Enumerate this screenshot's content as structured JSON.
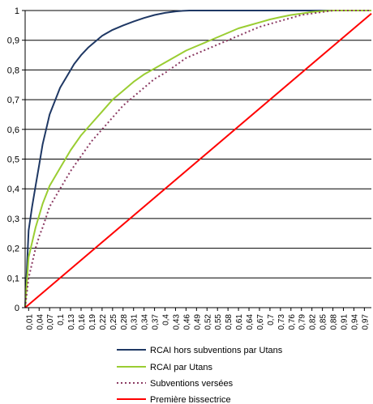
{
  "chart_data": {
    "type": "line",
    "title": "",
    "xlabel": "",
    "ylabel": "",
    "ylim": [
      0,
      1
    ],
    "yticks": [
      0,
      0.1,
      0.2,
      0.3,
      0.4,
      0.5,
      0.6,
      0.7,
      0.8,
      0.9,
      1
    ],
    "ytick_labels": [
      "0",
      "0,1",
      "0,2",
      "0,3",
      "0,4",
      "0,5",
      "0,6",
      "0,7",
      "0,8",
      "0,9",
      "1"
    ],
    "xlim": [
      0,
      0.99
    ],
    "xticks": [
      0.01,
      0.04,
      0.07,
      0.1,
      0.13,
      0.16,
      0.19,
      0.22,
      0.25,
      0.28,
      0.31,
      0.34,
      0.37,
      0.4,
      0.43,
      0.46,
      0.49,
      0.52,
      0.55,
      0.58,
      0.61,
      0.64,
      0.67,
      0.7,
      0.73,
      0.76,
      0.79,
      0.82,
      0.85,
      0.88,
      0.91,
      0.94,
      0.97
    ],
    "xtick_labels": [
      "0,01",
      "0,04",
      "0,07",
      "0,1",
      "0,13",
      "0,16",
      "0,19",
      "0,22",
      "0,25",
      "0,28",
      "0,31",
      "0,34",
      "0,37",
      "0,4",
      "0,43",
      "0,46",
      "0,49",
      "0,52",
      "0,55",
      "0,58",
      "0,61",
      "0,64",
      "0,67",
      "0,7",
      "0,73",
      "0,76",
      "0,79",
      "0,82",
      "0,85",
      "0,88",
      "0,91",
      "0,94",
      "0,97"
    ],
    "grid": "horizontal",
    "legend_position": "bottom",
    "series": [
      {
        "name": "RCAI hors subventions par Utans",
        "color": "#1f3864",
        "style": "solid",
        "x": [
          0,
          0.01,
          0.02,
          0.03,
          0.04,
          0.05,
          0.06,
          0.07,
          0.08,
          0.1,
          0.12,
          0.14,
          0.16,
          0.18,
          0.2,
          0.22,
          0.25,
          0.28,
          0.31,
          0.34,
          0.37,
          0.4,
          0.43,
          0.45,
          0.47,
          0.5,
          0.6,
          0.7,
          0.8,
          0.9,
          0.99
        ],
        "y": [
          0,
          0.26,
          0.34,
          0.41,
          0.48,
          0.55,
          0.6,
          0.65,
          0.68,
          0.74,
          0.78,
          0.82,
          0.85,
          0.875,
          0.895,
          0.915,
          0.935,
          0.95,
          0.963,
          0.975,
          0.985,
          0.992,
          0.997,
          0.999,
          1,
          1,
          1,
          1,
          1,
          1,
          1
        ]
      },
      {
        "name": "RCAI par Utans",
        "color": "#9acd32",
        "style": "solid",
        "x": [
          0,
          0.01,
          0.02,
          0.03,
          0.04,
          0.05,
          0.07,
          0.1,
          0.13,
          0.16,
          0.19,
          0.22,
          0.25,
          0.28,
          0.31,
          0.34,
          0.37,
          0.4,
          0.43,
          0.46,
          0.49,
          0.52,
          0.55,
          0.58,
          0.61,
          0.64,
          0.67,
          0.7,
          0.73,
          0.76,
          0.79,
          0.82,
          0.85,
          0.88,
          0.91,
          0.94,
          0.97,
          0.99
        ],
        "y": [
          0,
          0.17,
          0.22,
          0.27,
          0.31,
          0.35,
          0.41,
          0.47,
          0.53,
          0.58,
          0.62,
          0.66,
          0.7,
          0.73,
          0.76,
          0.785,
          0.805,
          0.825,
          0.845,
          0.865,
          0.88,
          0.895,
          0.91,
          0.925,
          0.94,
          0.95,
          0.96,
          0.97,
          0.978,
          0.985,
          0.99,
          0.995,
          0.998,
          1,
          1,
          1,
          1,
          1
        ]
      },
      {
        "name": "Subventions versées",
        "color": "#8b3a62",
        "style": "dashed",
        "x": [
          0,
          0.01,
          0.02,
          0.03,
          0.04,
          0.05,
          0.07,
          0.1,
          0.13,
          0.16,
          0.19,
          0.22,
          0.25,
          0.28,
          0.31,
          0.34,
          0.37,
          0.4,
          0.43,
          0.46,
          0.49,
          0.52,
          0.55,
          0.58,
          0.61,
          0.64,
          0.67,
          0.7,
          0.73,
          0.76,
          0.79,
          0.82,
          0.85,
          0.88,
          0.91,
          0.94,
          0.97,
          0.99
        ],
        "y": [
          0,
          0.1,
          0.15,
          0.2,
          0.24,
          0.27,
          0.34,
          0.4,
          0.46,
          0.51,
          0.56,
          0.6,
          0.64,
          0.68,
          0.71,
          0.74,
          0.77,
          0.79,
          0.815,
          0.84,
          0.855,
          0.87,
          0.885,
          0.9,
          0.915,
          0.93,
          0.945,
          0.955,
          0.965,
          0.975,
          0.985,
          0.99,
          0.995,
          1,
          1,
          1,
          1,
          1
        ]
      },
      {
        "name": "Première bissectrice",
        "color": "#ff0000",
        "style": "solid",
        "x": [
          0,
          0.99
        ],
        "y": [
          0,
          0.99
        ]
      }
    ]
  }
}
